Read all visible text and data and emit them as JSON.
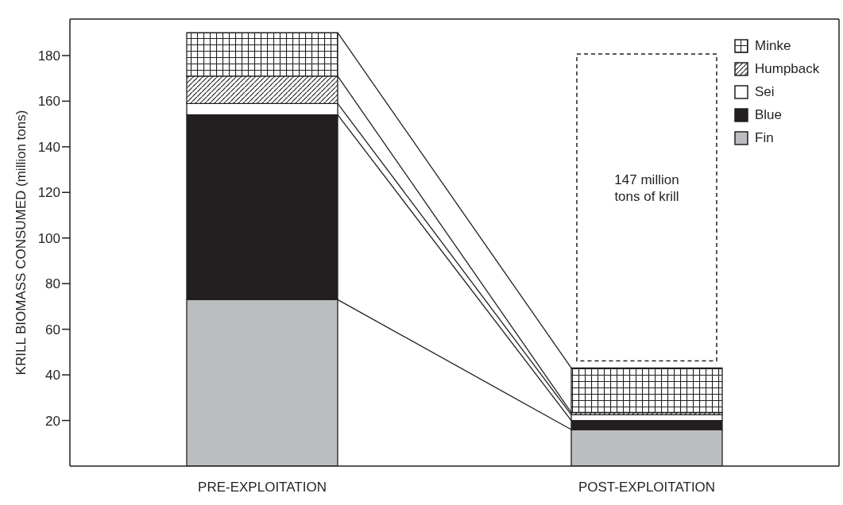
{
  "chart_data": {
    "type": "bar",
    "stacked": true,
    "ylabel": "KRILL BIOMASS CONSUMED (million tons)",
    "categories": [
      "PRE-EXPLOITATION",
      "POST-EXPLOITATION"
    ],
    "series": [
      {
        "name": "Fin",
        "color": "#bcbdc0",
        "values": [
          73,
          16
        ]
      },
      {
        "name": "Blue",
        "color": "#231f20",
        "values": [
          81,
          4
        ]
      },
      {
        "name": "Sei",
        "color": "#ffffff",
        "values": [
          5,
          2.5
        ]
      },
      {
        "name": "Humpback",
        "color": "#231f20",
        "values": [
          12,
          1
        ]
      },
      {
        "name": "Minke",
        "color": "#231f20",
        "values": [
          19,
          19.5
        ]
      }
    ],
    "ylim": [
      0,
      196
    ],
    "yticks": [
      20,
      40,
      60,
      80,
      100,
      120,
      140,
      160,
      180
    ],
    "legend": "top right",
    "annotations": [
      "147 million tons of krill"
    ]
  }
}
